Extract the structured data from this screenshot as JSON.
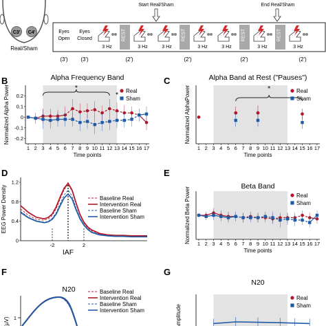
{
  "colors": {
    "real": "#b0182a",
    "sham": "#1f5aa6",
    "shade": "#e3e3e3",
    "rest": "#a9a9a9"
  },
  "panel_a": {
    "head_electrodes": [
      "C3'",
      "C4'"
    ],
    "head_label": "Real/Sham",
    "start_label": "Start Real/Sham",
    "end_label": "End Real/Sham",
    "blocks": [
      {
        "kind": "text",
        "label": "Eyes\nOpen"
      },
      {
        "kind": "text",
        "label": "Eyes\nClosed"
      },
      {
        "kind": "stim",
        "label": "3 Hz"
      },
      {
        "kind": "rest",
        "label": "REST"
      },
      {
        "kind": "stim",
        "label": "3 Hz"
      },
      {
        "kind": "stim",
        "label": "3 Hz"
      },
      {
        "kind": "rest",
        "label": "REST"
      },
      {
        "kind": "stim",
        "label": "3 Hz"
      },
      {
        "kind": "stim",
        "label": "3 Hz"
      },
      {
        "kind": "rest",
        "label": "REST"
      },
      {
        "kind": "stim",
        "label": "3 Hz"
      },
      {
        "kind": "rest",
        "label": "REST"
      },
      {
        "kind": "stim",
        "label": "3 Hz"
      }
    ],
    "durations": [
      "(3')",
      "(3')",
      "(2')",
      "(2')",
      "(2')",
      "(2')"
    ]
  },
  "chart_data": [
    {
      "panel": "B",
      "type": "line",
      "title": "Alpha Frequency Band",
      "xlabel": "Time points",
      "ylabel": "Normalized Alpha Power",
      "x": [
        1,
        2,
        3,
        4,
        5,
        6,
        7,
        8,
        9,
        10,
        11,
        12,
        13,
        14,
        15,
        16,
        17
      ],
      "ylim": [
        -0.25,
        0.3
      ],
      "yticks": [
        -0.2,
        -0.1,
        0,
        0.1,
        0.2
      ],
      "shaded_x": [
        3,
        13
      ],
      "significance": [
        "*",
        "*"
      ],
      "legend": [
        "Real",
        "Sham"
      ],
      "series": [
        {
          "name": "Real",
          "values": [
            0,
            -0.01,
            0.01,
            0.01,
            0.01,
            0.02,
            0.08,
            0.05,
            0.06,
            0.07,
            0.04,
            0.08,
            0.06,
            0.04,
            0.04,
            0.02,
            -0.05
          ],
          "err": [
            0,
            0.05,
            0.07,
            0.07,
            0.06,
            0.08,
            0.09,
            0.08,
            0.07,
            0.08,
            0.07,
            0.09,
            0.08,
            0.07,
            0.06,
            0.06,
            0.07
          ]
        },
        {
          "name": "Sham",
          "values": [
            0,
            -0.01,
            -0.02,
            -0.03,
            -0.02,
            -0.02,
            -0.02,
            -0.05,
            -0.04,
            -0.07,
            -0.05,
            -0.04,
            -0.03,
            -0.03,
            -0.02,
            0.02,
            0.03
          ],
          "err": [
            0,
            0.05,
            0.09,
            0.08,
            0.07,
            0.07,
            0.07,
            0.08,
            0.07,
            0.09,
            0.08,
            0.08,
            0.07,
            0.07,
            0.07,
            0.06,
            0.07
          ]
        }
      ]
    },
    {
      "panel": "C",
      "type": "scatter",
      "title": "Alpha Band at Rest (\"Pauses\")",
      "xlabel": "Time points",
      "ylabel": "Normalized AlphaPower",
      "x": [
        1,
        2,
        3,
        4,
        5,
        6,
        7,
        8,
        9,
        10,
        11,
        12,
        13,
        14,
        15,
        16,
        17
      ],
      "ylim": [
        -0.25,
        0.3
      ],
      "shaded_x": [
        3,
        13
      ],
      "significance": [
        "*"
      ],
      "legend": [
        "Real",
        "Sham"
      ],
      "series": [
        {
          "name": "Real",
          "points": [
            [
              1,
              0
            ],
            [
              6,
              0.04
            ],
            [
              9,
              0.04
            ],
            [
              15,
              0.03
            ]
          ],
          "err": [
            0,
            0.06,
            0.07,
            0.05
          ]
        },
        {
          "name": "Sham",
          "points": [
            [
              6,
              -0.03
            ],
            [
              9,
              -0.03
            ],
            [
              15,
              -0.05
            ]
          ],
          "err": [
            0.06,
            0.06,
            0.06
          ]
        }
      ]
    },
    {
      "panel": "D",
      "type": "line",
      "title": "",
      "xlabel": "IAF",
      "ylabel": "EEG Power Density",
      "ylim": [
        0,
        1.3
      ],
      "yticks": [
        0,
        0.4,
        0.8,
        1.2
      ],
      "xtick_labels": [
        "-2",
        "2"
      ],
      "legend": [
        "Baseline Real",
        "Intervention Real",
        "Baseline Sham",
        "Intervention Sham"
      ],
      "x": [
        -6,
        -5,
        -4,
        -3,
        -2.5,
        -2,
        -1.5,
        -1,
        -0.5,
        0,
        0.5,
        1,
        1.5,
        2,
        2.5,
        3,
        4,
        5,
        6,
        7,
        8,
        9,
        10
      ],
      "series": [
        {
          "name": "Baseline Real",
          "values": [
            0.65,
            0.52,
            0.44,
            0.42,
            0.45,
            0.52,
            0.66,
            0.86,
            1.05,
            1.16,
            1.02,
            0.76,
            0.52,
            0.36,
            0.26,
            0.2,
            0.14,
            0.11,
            0.1,
            0.1,
            0.09,
            0.09,
            0.09
          ]
        },
        {
          "name": "Intervention Real",
          "values": [
            0.72,
            0.58,
            0.48,
            0.45,
            0.48,
            0.55,
            0.7,
            0.9,
            1.08,
            1.18,
            1.04,
            0.78,
            0.54,
            0.38,
            0.28,
            0.22,
            0.15,
            0.12,
            0.11,
            0.11,
            0.1,
            0.1,
            0.1
          ]
        },
        {
          "name": "Baseline Sham",
          "values": [
            0.6,
            0.48,
            0.41,
            0.38,
            0.4,
            0.46,
            0.58,
            0.76,
            0.94,
            1.04,
            0.92,
            0.68,
            0.47,
            0.33,
            0.24,
            0.18,
            0.13,
            0.1,
            0.09,
            0.09,
            0.08,
            0.08,
            0.08
          ]
        },
        {
          "name": "Intervention Sham",
          "values": [
            0.58,
            0.47,
            0.4,
            0.37,
            0.39,
            0.44,
            0.55,
            0.72,
            0.88,
            0.96,
            0.86,
            0.64,
            0.45,
            0.32,
            0.23,
            0.17,
            0.12,
            0.1,
            0.09,
            0.09,
            0.08,
            0.08,
            0.08
          ]
        }
      ]
    },
    {
      "panel": "E",
      "type": "line",
      "title": "Beta Band",
      "xlabel": "Time points",
      "ylabel": "Normalized Beta Power",
      "x": [
        1,
        2,
        3,
        4,
        5,
        6,
        7,
        8,
        9,
        10,
        11,
        12,
        13,
        14,
        15,
        16,
        17
      ],
      "ylim": [
        -0.1,
        0.1
      ],
      "shaded_x": [
        3,
        13
      ],
      "legend": [
        "Real",
        "Sham"
      ],
      "series": [
        {
          "name": "Real",
          "values": [
            0,
            0.0,
            0.01,
            0.0,
            -0.005,
            -0.005,
            -0.01,
            -0.005,
            -0.01,
            -0.01,
            -0.015,
            -0.01,
            -0.01,
            -0.01,
            0.0,
            -0.01,
            -0.015
          ],
          "err": [
            0,
            0.015,
            0.02,
            0.02,
            0.02,
            0.02,
            0.02,
            0.02,
            0.02,
            0.02,
            0.02,
            0.02,
            0.02,
            0.02,
            0.02,
            0.02,
            0.02
          ]
        },
        {
          "name": "Sham",
          "values": [
            0,
            -0.005,
            0.0,
            -0.005,
            -0.01,
            -0.005,
            -0.01,
            -0.01,
            -0.01,
            -0.005,
            -0.01,
            -0.02,
            -0.015,
            -0.02,
            -0.02,
            -0.03,
            0.0
          ],
          "err": [
            0,
            0.015,
            0.02,
            0.02,
            0.02,
            0.02,
            0.02,
            0.02,
            0.02,
            0.02,
            0.025,
            0.03,
            0.025,
            0.025,
            0.02,
            0.02,
            0.02
          ]
        }
      ]
    },
    {
      "panel": "F",
      "type": "line",
      "title": "N20",
      "ylabel": "(µV)",
      "ytick_labels": [
        "1"
      ],
      "legend": [
        "Baseline Real",
        "Intervention Real",
        "Baseline Sham",
        "Intervention Sham"
      ]
    },
    {
      "panel": "G",
      "type": "line",
      "title": "N20",
      "ylabel": "Amplitude",
      "shaded_x": [
        3,
        13
      ],
      "legend": [
        "Real",
        "Sham"
      ],
      "series": [
        {
          "name": "Sham",
          "points": [
            [
              3,
              0.3
            ],
            [
              6,
              0.5
            ],
            [
              9,
              0.45
            ],
            [
              12,
              0.4
            ],
            [
              14,
              0.35
            ],
            [
              16,
              0.3
            ]
          ]
        }
      ]
    }
  ]
}
